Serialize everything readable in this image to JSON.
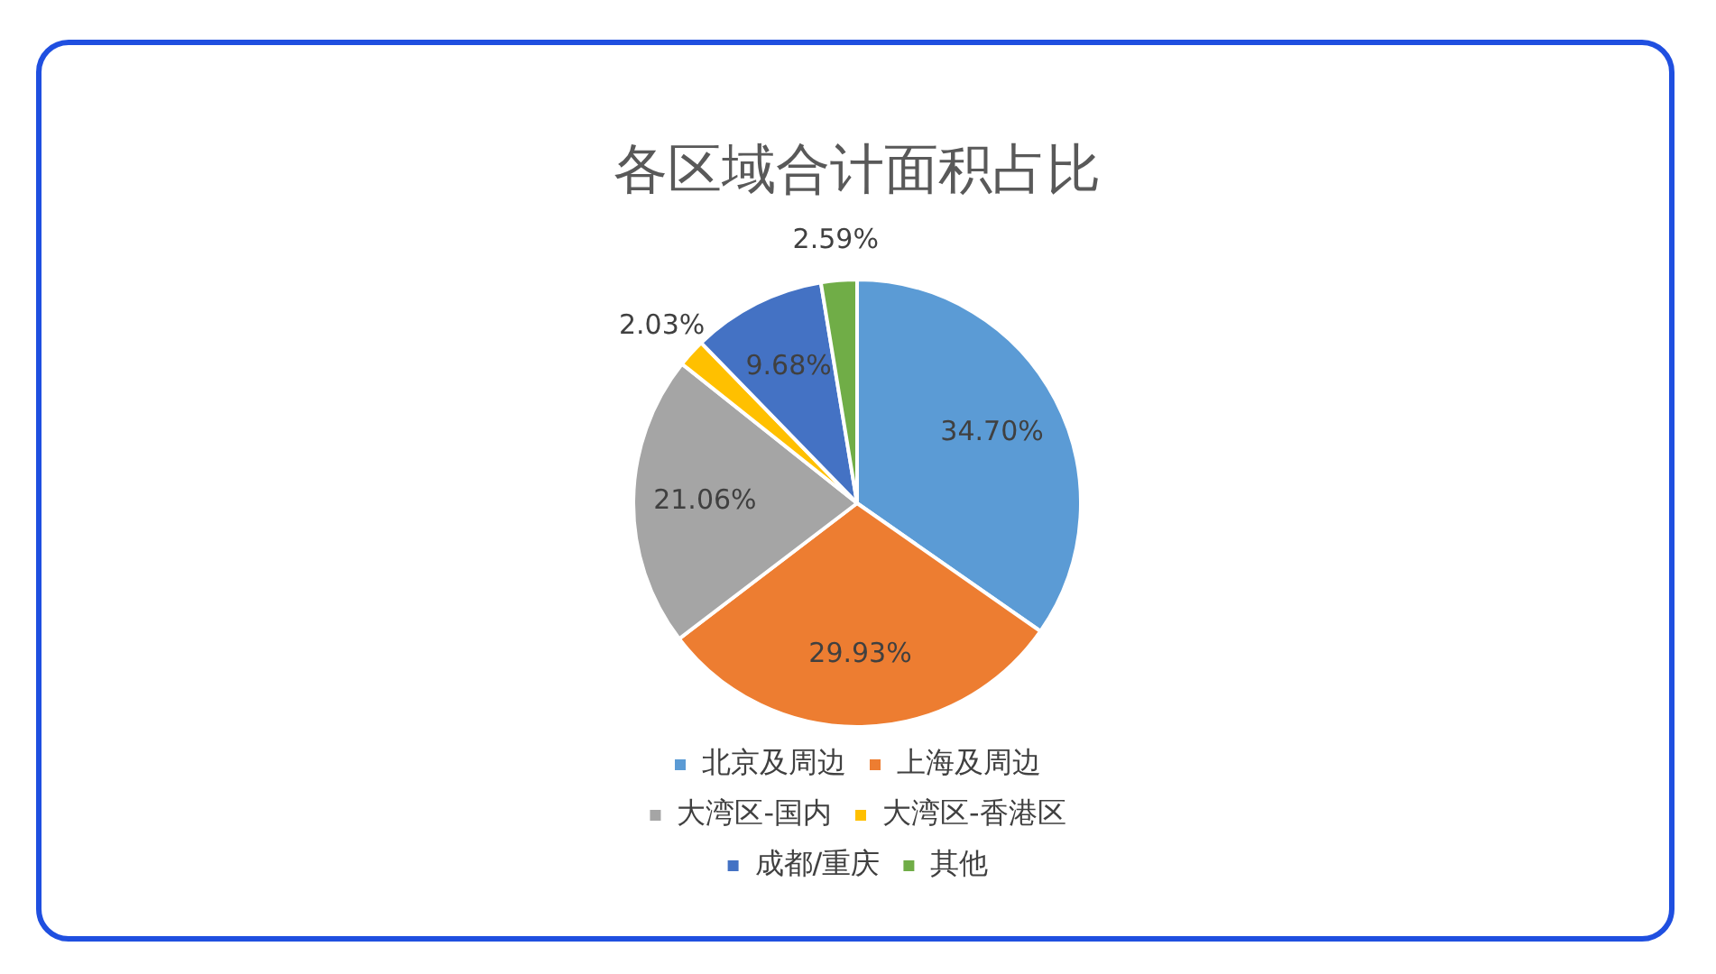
{
  "chart_data": {
    "type": "pie",
    "title": "各区域合计面积占比",
    "categories": [
      "北京及周边",
      "上海及周边",
      "大湾区-国内",
      "大湾区-香港区",
      "成都/重庆",
      "其他"
    ],
    "values": [
      34.7,
      29.93,
      21.06,
      2.03,
      9.68,
      2.59
    ],
    "value_labels": [
      "34.70%",
      "29.93%",
      "21.06%",
      "2.03%",
      "9.68%",
      "2.59%"
    ],
    "colors": [
      "#5b9bd5",
      "#ed7d31",
      "#a5a5a5",
      "#ffc000",
      "#4472c4",
      "#70ad47"
    ],
    "legend": "bottom"
  }
}
